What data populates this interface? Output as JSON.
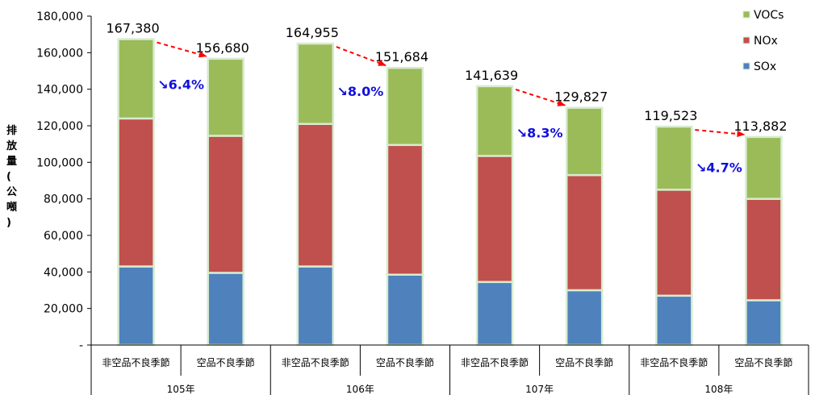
{
  "chart_data": {
    "type": "bar",
    "stacked": true,
    "ylabel": "排放量(公噸)",
    "ylim": [
      0,
      180000
    ],
    "yticks": [
      "-",
      "20,000",
      "40,000",
      "60,000",
      "80,000",
      "100,000",
      "120,000",
      "140,000",
      "160,000",
      "180,000"
    ],
    "ytick_values": [
      0,
      20000,
      40000,
      60000,
      80000,
      100000,
      120000,
      140000,
      160000,
      180000
    ],
    "groups": [
      "105年",
      "106年",
      "107年",
      "108年"
    ],
    "categories": [
      "非空品不良季節",
      "空品不良季節",
      "非空品不良季節",
      "空品不良季節",
      "非空品不良季節",
      "空品不良季節",
      "非空品不良季節",
      "空品不良季節"
    ],
    "series": [
      {
        "name": "SOx",
        "color": "#4f81bd",
        "values": [
          43000,
          39500,
          43000,
          38500,
          34500,
          30000,
          27000,
          24500
        ]
      },
      {
        "name": "NOx",
        "color": "#c0504d",
        "values": [
          81000,
          75000,
          78000,
          71000,
          69000,
          63000,
          58000,
          55500
        ]
      },
      {
        "name": "VOCs",
        "color": "#9bbb59",
        "values": [
          43380,
          42180,
          43955,
          42184,
          38139,
          36827,
          34523,
          33882
        ]
      }
    ],
    "totals": [
      "167,380",
      "156,680",
      "164,955",
      "151,684",
      "141,639",
      "129,827",
      "119,523",
      "113,882"
    ],
    "total_values": [
      167380,
      156680,
      164955,
      151684,
      141639,
      129827,
      119523,
      113882
    ],
    "reductions": [
      "↘6.4%",
      "↘8.0%",
      "↘8.3%",
      "↘4.7%"
    ],
    "legend_order": [
      "VOCs",
      "NOx",
      "SOx"
    ],
    "legend_position": "top-right",
    "grid": false
  },
  "colors": {
    "arrow": "#ff0000",
    "reduction_text": "#1010e0",
    "bar_edge": "#d7ecd0"
  }
}
